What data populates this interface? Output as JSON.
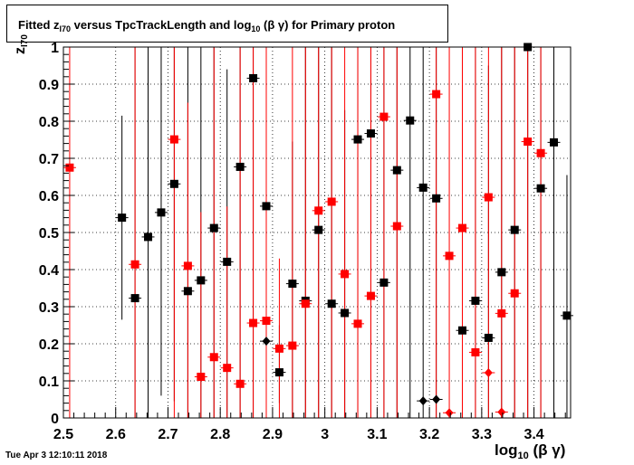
{
  "chart_data": {
    "type": "scatter",
    "title_parts": {
      "pre": "Fitted  z",
      "sub": "I70",
      "mid": "  versus TpcTrackLength and log",
      "sub2": "10",
      "post": " (β γ) for Primary proton"
    },
    "xlabel_parts": {
      "main": "log",
      "sub": "10",
      "post": " (β γ)"
    },
    "ylabel_parts": {
      "main": "z",
      "sub": "I70"
    },
    "xlim": [
      2.5,
      3.47
    ],
    "ylim": [
      0,
      1.0
    ],
    "xticks": [
      2.5,
      2.6,
      2.7,
      2.8,
      2.9,
      3.0,
      3.1,
      3.2,
      3.3,
      3.4
    ],
    "xtick_labels": [
      "2.5",
      "2.6",
      "2.7",
      "2.8",
      "2.9",
      "3",
      "3.1",
      "3.2",
      "3.3",
      "3.4"
    ],
    "yticks": [
      0,
      0.1,
      0.2,
      0.3,
      0.4,
      0.5,
      0.6,
      0.7,
      0.8,
      0.9,
      1.0
    ],
    "ytick_labels": [
      "0",
      "0.1",
      "0.2",
      "0.3",
      "0.4",
      "0.5",
      "0.6",
      "0.7",
      "0.8",
      "0.9",
      "1"
    ],
    "grid": true,
    "series": [
      {
        "color": "#000000",
        "marker": "square",
        "points": [
          {
            "x": 2.612,
            "y": 0.54,
            "ylo": 0.265,
            "yhi": 0.815
          },
          {
            "x": 2.637,
            "y": 0.323,
            "ylo": 0.0,
            "yhi": 1.0
          },
          {
            "x": 2.662,
            "y": 0.488,
            "ylo": 0.0,
            "yhi": 1.0
          },
          {
            "x": 2.687,
            "y": 0.554,
            "ylo": 0.06,
            "yhi": 1.0
          },
          {
            "x": 2.712,
            "y": 0.631,
            "ylo": 0.045,
            "yhi": 1.0
          },
          {
            "x": 2.738,
            "y": 0.342,
            "ylo": 0.0,
            "yhi": 1.0
          },
          {
            "x": 2.763,
            "y": 0.371,
            "ylo": 0.0,
            "yhi": 1.0
          },
          {
            "x": 2.788,
            "y": 0.512,
            "ylo": 0.0,
            "yhi": 1.0
          },
          {
            "x": 2.813,
            "y": 0.421,
            "ylo": 0.0,
            "yhi": 0.94
          },
          {
            "x": 2.838,
            "y": 0.677,
            "ylo": 0.0,
            "yhi": 1.0
          },
          {
            "x": 2.863,
            "y": 0.916,
            "ylo": 0.0,
            "yhi": 1.0
          },
          {
            "x": 2.888,
            "y": 0.571,
            "ylo": 0.0,
            "yhi": 1.0
          },
          {
            "x": 2.913,
            "y": 0.123,
            "ylo": 0.04,
            "yhi": 0.25
          },
          {
            "x": 2.938,
            "y": 0.362,
            "ylo": 0.0,
            "yhi": 0.745
          },
          {
            "x": 2.963,
            "y": 0.316,
            "ylo": 0.0,
            "yhi": 1.0
          },
          {
            "x": 2.988,
            "y": 0.507,
            "ylo": 0.0,
            "yhi": 1.0
          },
          {
            "x": 3.013,
            "y": 0.308,
            "ylo": 0.0,
            "yhi": 1.0
          },
          {
            "x": 3.038,
            "y": 0.283,
            "ylo": 0.0,
            "yhi": 0.83
          },
          {
            "x": 3.063,
            "y": 0.751,
            "ylo": 0.0,
            "yhi": 1.0
          },
          {
            "x": 3.088,
            "y": 0.767,
            "ylo": 0.0,
            "yhi": 1.0
          },
          {
            "x": 3.113,
            "y": 0.365,
            "ylo": 0.0,
            "yhi": 1.0
          },
          {
            "x": 3.138,
            "y": 0.668,
            "ylo": 0.0,
            "yhi": 1.0
          },
          {
            "x": 3.163,
            "y": 0.802,
            "ylo": 0.0,
            "yhi": 1.0
          },
          {
            "x": 3.188,
            "y": 0.621,
            "ylo": 0.0,
            "yhi": 1.0
          },
          {
            "x": 3.213,
            "y": 0.592,
            "ylo": 0.0,
            "yhi": 1.0
          },
          {
            "x": 3.263,
            "y": 0.236,
            "ylo": 0.0,
            "yhi": 1.0
          },
          {
            "x": 3.288,
            "y": 0.316,
            "ylo": 0.0,
            "yhi": 1.0
          },
          {
            "x": 3.313,
            "y": 0.216,
            "ylo": 0.0,
            "yhi": 0.95
          },
          {
            "x": 3.338,
            "y": 0.393,
            "ylo": 0.0,
            "yhi": 1.0
          },
          {
            "x": 3.363,
            "y": 0.507,
            "ylo": 0.0,
            "yhi": 1.0
          },
          {
            "x": 3.388,
            "y": 1.0,
            "ylo": 0.0,
            "yhi": 1.0
          },
          {
            "x": 3.413,
            "y": 0.619,
            "ylo": 0.0,
            "yhi": 1.0
          },
          {
            "x": 3.438,
            "y": 0.743,
            "ylo": 0.0,
            "yhi": 1.0
          },
          {
            "x": 3.463,
            "y": 0.276,
            "ylo": 0.0,
            "yhi": 0.655
          }
        ]
      },
      {
        "color": "#ff0000",
        "marker": "square",
        "points": [
          {
            "x": 2.512,
            "y": 0.675,
            "ylo": 0.0,
            "yhi": 1.0
          },
          {
            "x": 2.637,
            "y": 0.414,
            "ylo": 0.0,
            "yhi": 1.0
          },
          {
            "x": 2.712,
            "y": 0.751,
            "ylo": 0.0,
            "yhi": 1.0
          },
          {
            "x": 2.738,
            "y": 0.41,
            "ylo": 0.0,
            "yhi": 0.85
          },
          {
            "x": 2.763,
            "y": 0.111,
            "ylo": 0.0,
            "yhi": 0.555
          },
          {
            "x": 2.788,
            "y": 0.164,
            "ylo": 0.0,
            "yhi": 1.0
          },
          {
            "x": 2.813,
            "y": 0.135,
            "ylo": 0.0,
            "yhi": 0.57
          },
          {
            "x": 2.838,
            "y": 0.092,
            "ylo": 0.0,
            "yhi": 1.0
          },
          {
            "x": 2.863,
            "y": 0.256,
            "ylo": 0.0,
            "yhi": 1.0
          },
          {
            "x": 2.888,
            "y": 0.262,
            "ylo": 0.0,
            "yhi": 1.0
          },
          {
            "x": 2.913,
            "y": 0.187,
            "ylo": 0.0,
            "yhi": 0.43
          },
          {
            "x": 2.938,
            "y": 0.195,
            "ylo": 0.0,
            "yhi": 1.0
          },
          {
            "x": 2.963,
            "y": 0.308,
            "ylo": 0.0,
            "yhi": 1.0
          },
          {
            "x": 2.988,
            "y": 0.559,
            "ylo": 0.0,
            "yhi": 1.0
          },
          {
            "x": 3.013,
            "y": 0.583,
            "ylo": 0.0,
            "yhi": 1.0
          },
          {
            "x": 3.038,
            "y": 0.388,
            "ylo": 0.0,
            "yhi": 1.0
          },
          {
            "x": 3.063,
            "y": 0.254,
            "ylo": 0.0,
            "yhi": 1.0
          },
          {
            "x": 3.088,
            "y": 0.329,
            "ylo": 0.0,
            "yhi": 1.0
          },
          {
            "x": 3.113,
            "y": 0.812,
            "ylo": 0.0,
            "yhi": 1.0
          },
          {
            "x": 3.138,
            "y": 0.517,
            "ylo": 0.0,
            "yhi": 1.0
          },
          {
            "x": 3.213,
            "y": 0.873,
            "ylo": 0.0,
            "yhi": 1.0
          },
          {
            "x": 3.238,
            "y": 0.437,
            "ylo": 0.0,
            "yhi": 1.0
          },
          {
            "x": 3.263,
            "y": 0.512,
            "ylo": 0.0,
            "yhi": 1.0
          },
          {
            "x": 3.288,
            "y": 0.177,
            "ylo": 0.0,
            "yhi": 1.0
          },
          {
            "x": 3.313,
            "y": 0.595,
            "ylo": 0.0,
            "yhi": 1.0
          },
          {
            "x": 3.338,
            "y": 0.282,
            "ylo": 0.0,
            "yhi": 1.0
          },
          {
            "x": 3.363,
            "y": 0.336,
            "ylo": 0.0,
            "yhi": 1.0
          },
          {
            "x": 3.388,
            "y": 0.745,
            "ylo": 0.0,
            "yhi": 1.0
          },
          {
            "x": 3.413,
            "y": 0.714,
            "ylo": 0.0,
            "yhi": 1.0
          }
        ]
      },
      {
        "color": "#000000",
        "marker": "diamond",
        "points": [
          {
            "x": 2.888,
            "y": 0.207
          },
          {
            "x": 3.188,
            "y": 0.046
          },
          {
            "x": 3.213,
            "y": 0.05
          }
        ]
      },
      {
        "color": "#ff0000",
        "marker": "diamond",
        "points": [
          {
            "x": 3.238,
            "y": 0.014
          },
          {
            "x": 3.313,
            "y": 0.122
          },
          {
            "x": 3.338,
            "y": 0.016
          }
        ]
      }
    ]
  },
  "timestamp": "Tue Apr  3 12:10:11 2018"
}
